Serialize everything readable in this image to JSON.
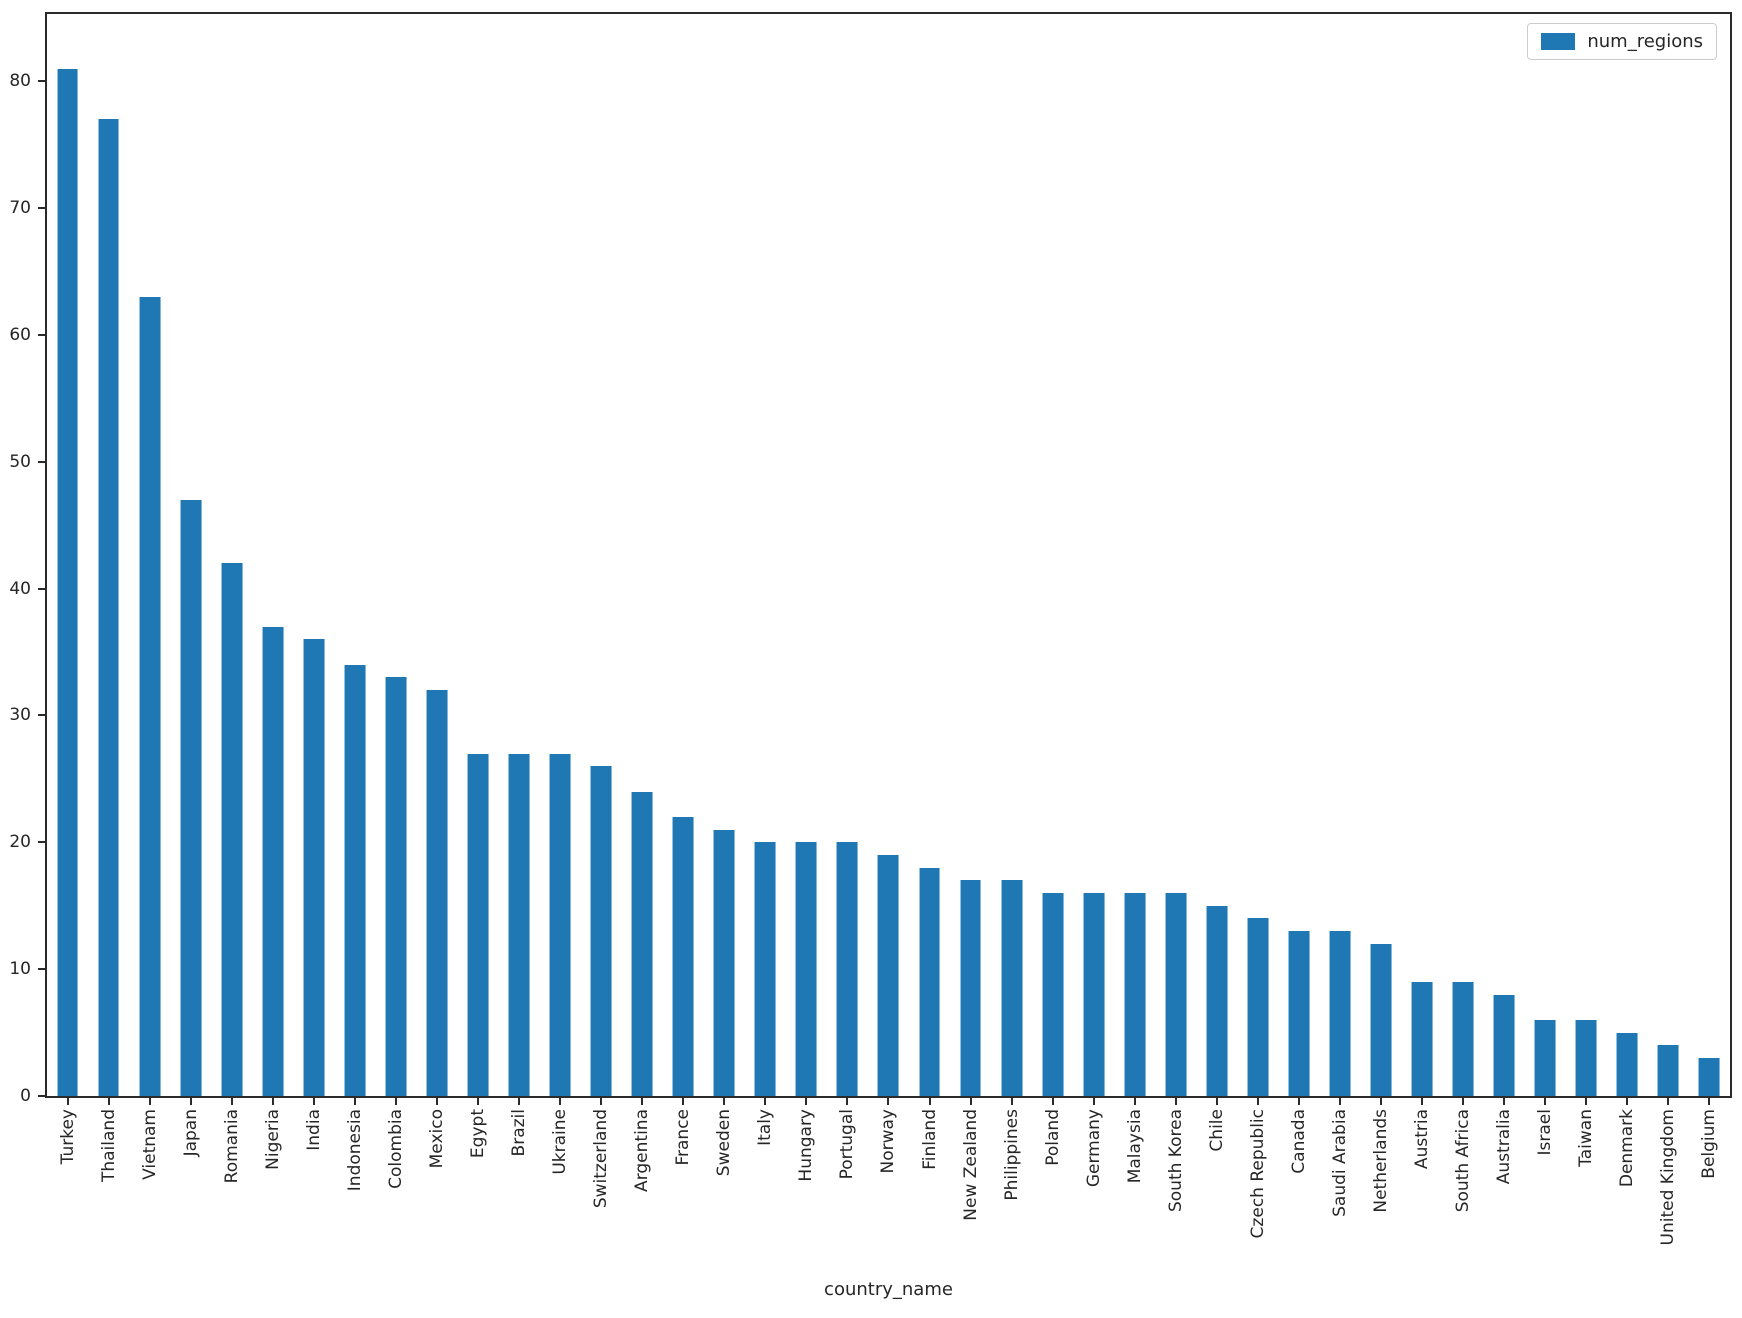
{
  "chart_data": {
    "type": "bar",
    "title": "",
    "xlabel": "country_name",
    "ylabel": "",
    "legend_label": "num_regions",
    "legend_position": "upper right",
    "bar_color": "#1f77b4",
    "grid": false,
    "ylim": [
      0,
      85.3
    ],
    "yticks": [
      0,
      10,
      20,
      30,
      40,
      50,
      60,
      70,
      80
    ],
    "categories": [
      "Turkey",
      "Thailand",
      "Vietnam",
      "Japan",
      "Romania",
      "Nigeria",
      "India",
      "Indonesia",
      "Colombia",
      "Mexico",
      "Egypt",
      "Brazil",
      "Ukraine",
      "Switzerland",
      "Argentina",
      "France",
      "Sweden",
      "Italy",
      "Hungary",
      "Portugal",
      "Norway",
      "Finland",
      "New Zealand",
      "Philippines",
      "Poland",
      "Germany",
      "Malaysia",
      "South Korea",
      "Chile",
      "Czech Republic",
      "Canada",
      "Saudi Arabia",
      "Netherlands",
      "Austria",
      "South Africa",
      "Australia",
      "Israel",
      "Taiwan",
      "Denmark",
      "United Kingdom",
      "Belgium"
    ],
    "values": [
      81,
      77,
      63,
      47,
      42,
      37,
      36,
      34,
      33,
      32,
      27,
      27,
      27,
      26,
      24,
      22,
      21,
      20,
      20,
      20,
      19,
      18,
      17,
      17,
      16,
      16,
      16,
      16,
      15,
      14,
      13,
      13,
      12,
      9,
      9,
      8,
      6,
      6,
      5,
      4,
      3
    ]
  }
}
